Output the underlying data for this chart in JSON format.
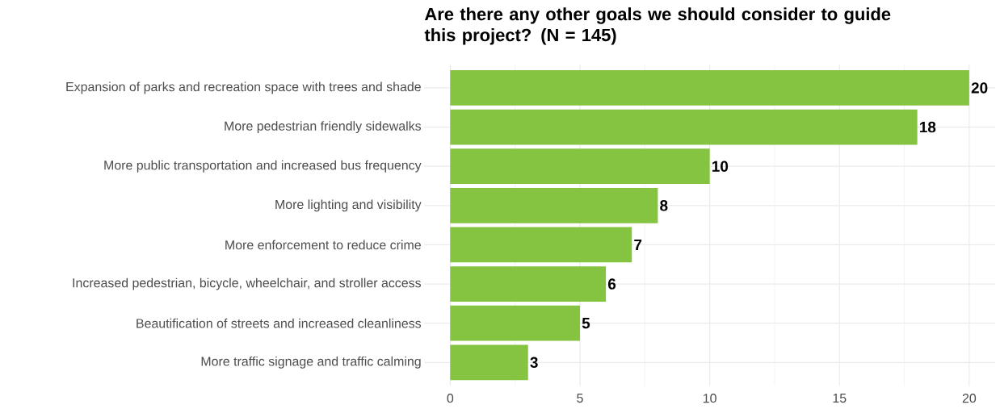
{
  "chart_data": {
    "type": "bar",
    "orientation": "horizontal",
    "title": "Are there any other goals we should consider to guide this project? (N = 145)",
    "categories": [
      "Expansion of parks and recreation space with trees and shade",
      "More pedestrian friendly sidewalks",
      "More public transportation and increased bus frequency",
      "More lighting and visibility",
      "More enforcement to reduce crime",
      "Increased pedestrian, bicycle, wheelchair, and stroller access",
      "Beautification of streets and increased cleanliness",
      "More traffic signage and traffic calming"
    ],
    "values": [
      20,
      18,
      10,
      8,
      7,
      6,
      5,
      3
    ],
    "color": "#84c441",
    "xlim": [
      -1,
      21
    ],
    "xticks": [
      0,
      5,
      10,
      15,
      20
    ],
    "grid": true,
    "data_labels": true
  }
}
